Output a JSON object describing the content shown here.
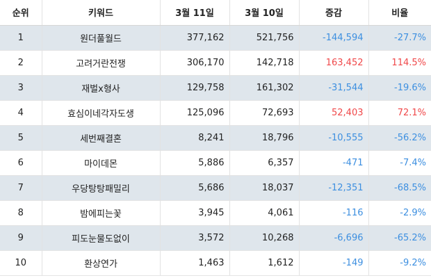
{
  "headers": {
    "rank": "순위",
    "keyword": "키워드",
    "mar11": "3월 11일",
    "mar10": "3월 10일",
    "change": "증감",
    "ratio": "비율"
  },
  "rows": [
    {
      "rank": "1",
      "keyword": "원더풀월드",
      "mar11": "377,162",
      "mar10": "521,756",
      "change": "-144,594",
      "ratio": "-27.7%"
    },
    {
      "rank": "2",
      "keyword": "고려거란전쟁",
      "mar11": "306,170",
      "mar10": "142,718",
      "change": "163,452",
      "ratio": "114.5%"
    },
    {
      "rank": "3",
      "keyword": "재벌x형사",
      "mar11": "129,758",
      "mar10": "161,302",
      "change": "-31,544",
      "ratio": "-19.6%"
    },
    {
      "rank": "4",
      "keyword": "효심이네각자도생",
      "mar11": "125,096",
      "mar10": "72,693",
      "change": "52,403",
      "ratio": "72.1%"
    },
    {
      "rank": "5",
      "keyword": "세번째결혼",
      "mar11": "8,241",
      "mar10": "18,796",
      "change": "-10,555",
      "ratio": "-56.2%"
    },
    {
      "rank": "6",
      "keyword": "마이데몬",
      "mar11": "5,886",
      "mar10": "6,357",
      "change": "-471",
      "ratio": "-7.4%"
    },
    {
      "rank": "7",
      "keyword": "우당탕탕패밀리",
      "mar11": "5,686",
      "mar10": "18,037",
      "change": "-12,351",
      "ratio": "-68.5%"
    },
    {
      "rank": "8",
      "keyword": "밤에피는꽃",
      "mar11": "3,945",
      "mar10": "4,061",
      "change": "-116",
      "ratio": "-2.9%"
    },
    {
      "rank": "9",
      "keyword": "피도눈물도없이",
      "mar11": "3,572",
      "mar10": "10,268",
      "change": "-6,696",
      "ratio": "-65.2%"
    },
    {
      "rank": "10",
      "keyword": "환상연가",
      "mar11": "1,463",
      "mar10": "1,612",
      "change": "-149",
      "ratio": "-9.2%"
    }
  ],
  "colors": {
    "negative": "#3d8fe0",
    "positive": "#f0484a",
    "shaded_row": "#dfe6ec"
  }
}
